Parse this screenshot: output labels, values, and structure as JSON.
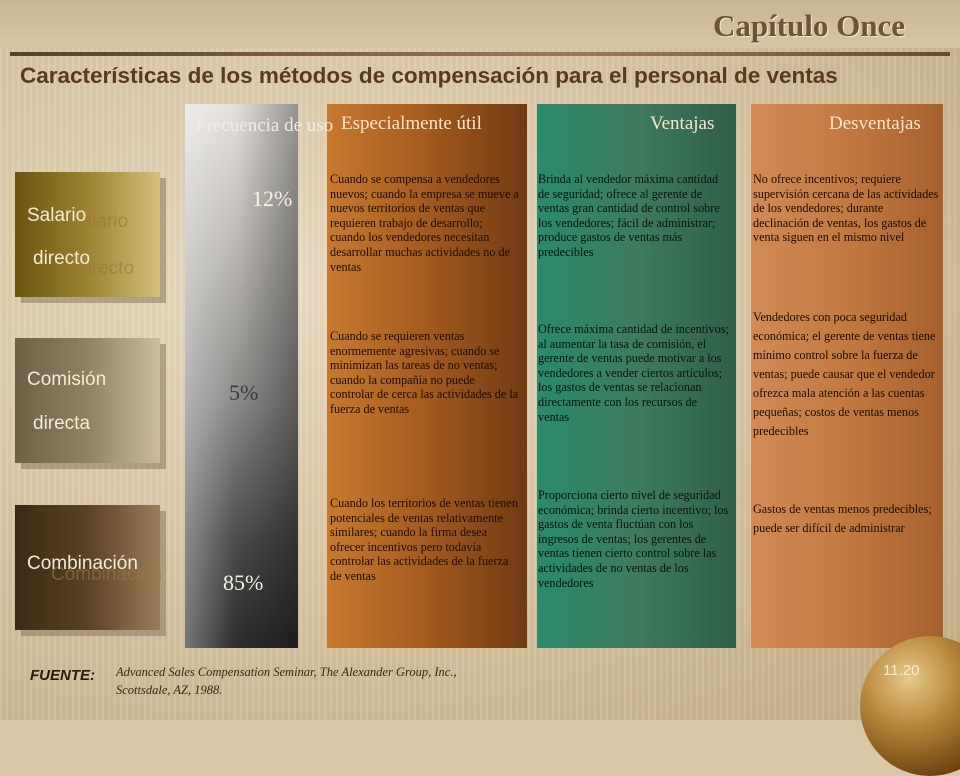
{
  "header": {
    "chapter": "Capítulo Once",
    "title": "Características de los métodos de compensación para el personal de ventas"
  },
  "rows": [
    {
      "label_1": "Salario",
      "label_2": "directo"
    },
    {
      "label_1": "Comisión",
      "label_2": "directa"
    },
    {
      "label_1": "Combinación"
    }
  ],
  "columns": {
    "frecuencia": "Frecuencia de uso",
    "especialmente": "Especialmente útil",
    "ventajas": "Ventajas",
    "desventajas": "Desventajas"
  },
  "frecuencia": [
    "12%",
    "5%",
    "85%"
  ],
  "especialmente": [
    "Cuando se compensa a vendedores nuevos; cuando la empresa se mueve a nuevos territorios de ventas que requieren trabajo de desarrollo; cuando los vendedores necesitan desarrollar muchas actividades no de ventas",
    "Cuando se requieren ventas enormemente agresivas; cuando se minimizan las tareas de no ventas; cuando la compañía no puede controlar de cerca las actividades de la fuerza de ventas",
    "Cuando los territorios de ventas tienen potenciales de ventas relativamente similares; cuando la firma desea ofrecer incentivos pero todavía controlar las actividades de la fuerza de ventas"
  ],
  "ventajas": [
    "Brinda al vendedor máxima cantidad de seguridad; ofrece al gerente de ventas gran cantidad de control sobre los vendedores; fácil de administrar; produce gastos de ventas más predecibles",
    "Ofrece máxima cantidad de incentivos; al aumentar la tasa de comisión, el gerente de ventas puede motivar a los vendedores a vender ciertos artículos; los gastos de ventas se relacionan directamente con los recursos de ventas",
    "Proporciona cierto nivel de seguridad económica; brinda cierto incentivo; los gastos de venta fluctúan con los ingresos de ventas; los gerentes de ventas tienen cierto control sobre las actividades de no ventas de los vendedores"
  ],
  "desventajas": [
    "No ofrece incentivos; requiere supervisión cercana de las actividades de los vendedores; durante declinación de ventas, los gastos de venta siguen en el mismo nivel",
    "Vendedores con poca seguridad económica; el gerente de ventas tiene mínimo control sobre la fuerza de ventas; puede causar que el vendedor ofrezca mala atención a las cuentas pequeñas; costos de ventas menos predecibles",
    "Gastos de ventas menos predecibles; puede ser difícil de administrar"
  ],
  "footer": {
    "fuente_label": "FUENTE:",
    "fuente_text": "Advanced Sales Compensation Seminar, The Alexander Group, Inc., Scottsdale, AZ, 1988.",
    "slide_number": "11.20"
  }
}
